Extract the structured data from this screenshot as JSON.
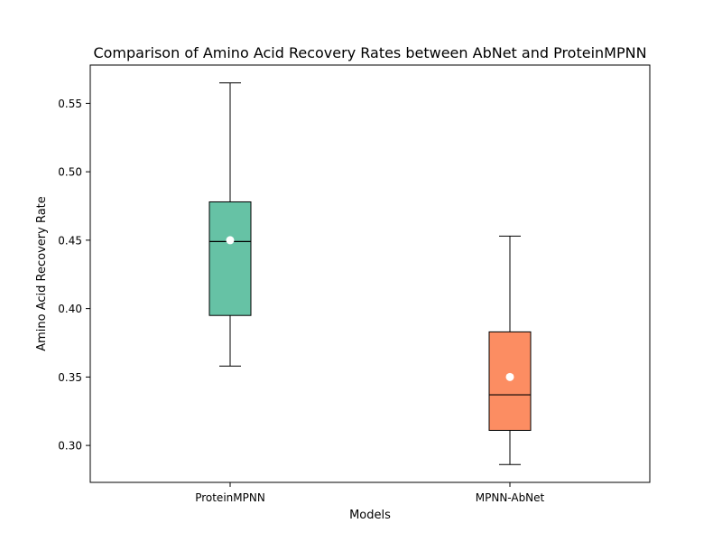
{
  "chart_data": {
    "type": "box",
    "title": "Comparison of Amino Acid Recovery Rates between AbNet and ProteinMPNN",
    "xlabel": "Models",
    "ylabel": "Amino Acid Recovery Rate",
    "ylim": [
      0.273,
      0.578
    ],
    "yticks": [
      0.3,
      0.35,
      0.4,
      0.45,
      0.5,
      0.55
    ],
    "ytick_labels": [
      "0.30",
      "0.35",
      "0.40",
      "0.45",
      "0.50",
      "0.55"
    ],
    "categories": [
      "ProteinMPNN",
      "MPNN-AbNet"
    ],
    "boxes": [
      {
        "category": "ProteinMPNN",
        "whisker_low": 0.358,
        "q1": 0.395,
        "median": 0.449,
        "q3": 0.478,
        "whisker_high": 0.565,
        "mean": 0.45,
        "color": "#66c2a5"
      },
      {
        "category": "MPNN-AbNet",
        "whisker_low": 0.286,
        "q1": 0.311,
        "median": 0.337,
        "q3": 0.383,
        "whisker_high": 0.453,
        "mean": 0.35,
        "color": "#fc8d62"
      }
    ],
    "grid": false,
    "mean_marker_color": "#ffffff"
  }
}
